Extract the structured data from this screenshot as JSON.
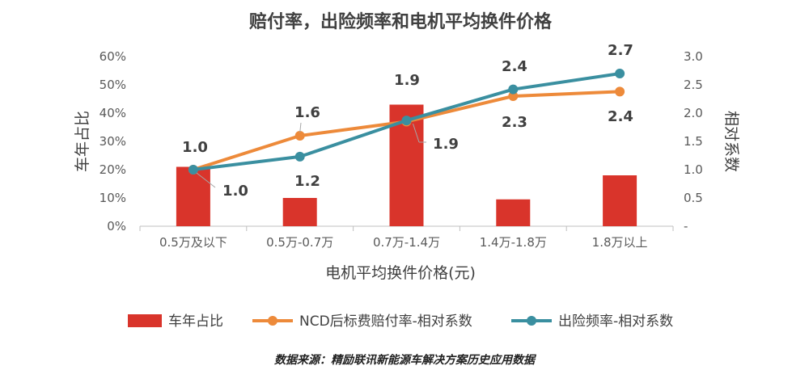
{
  "chart_data": {
    "type": "bar",
    "title": "赔付率，出险频率和电机平均换件价格",
    "xlabel": "电机平均换件价格(元)",
    "ylabel_left": "车年占比",
    "ylabel_right": "相对系数",
    "categories": [
      "0.5万及以下",
      "0.5万-0.7万",
      "0.7万-1.4万",
      "1.4万-1.8万",
      "1.8万以上"
    ],
    "y_left": {
      "lim": [
        0,
        60
      ],
      "ticks": [
        "0%",
        "10%",
        "20%",
        "30%",
        "40%",
        "50%",
        "60%"
      ]
    },
    "y_right": {
      "lim": [
        0,
        3.0
      ],
      "ticks": [
        "-",
        "0.5",
        "1.0",
        "1.5",
        "2.0",
        "2.5",
        "3.0"
      ]
    },
    "grid": false,
    "legend_position": "bottom",
    "series": [
      {
        "name": "车年占比",
        "type": "bar",
        "axis": "left",
        "color": "#D9342B",
        "values": [
          21,
          10,
          43,
          9.5,
          18
        ]
      },
      {
        "name": "NCD后标费赔付率-相对系数",
        "type": "line",
        "axis": "right",
        "color": "#ED8A3A",
        "values": [
          1.0,
          1.6,
          1.85,
          2.3,
          2.38
        ],
        "labels": [
          "1.0",
          "1.6",
          "1.9",
          "2.3",
          "2.4"
        ]
      },
      {
        "name": "出险频率-相对系数",
        "type": "line",
        "axis": "right",
        "color": "#3A8FA0",
        "values": [
          1.0,
          1.23,
          1.87,
          2.42,
          2.7
        ],
        "labels": [
          "1.0",
          "1.2",
          "1.9",
          "2.4",
          "2.7"
        ]
      }
    ]
  },
  "source_note": "数据来源：精励联讯新能源车解决方案历史应用数据"
}
